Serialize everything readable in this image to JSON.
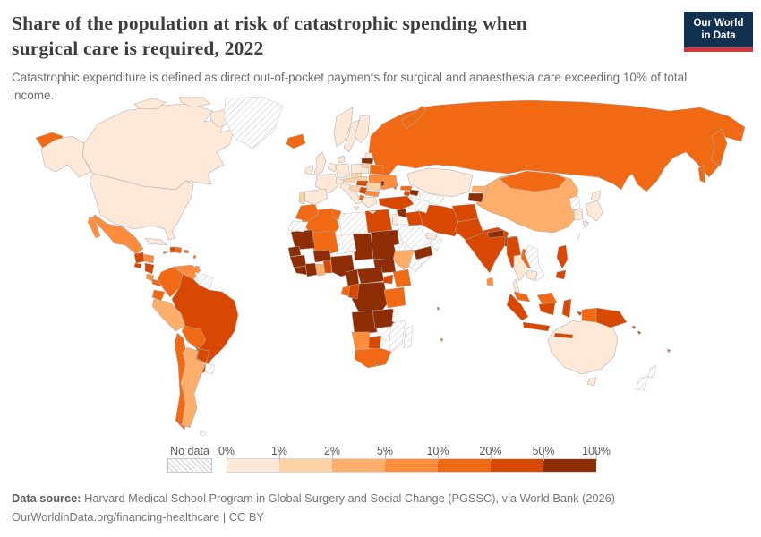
{
  "header": {
    "title_line1": "Share of the population at risk of catastrophic spending when",
    "title_line2": "surgical care is required, 2022",
    "subtitle": "Catastrophic expenditure is defined as direct out-of-pocket payments for surgical and anaesthesia care exceeding 10% of total income.",
    "logo": {
      "line1": "Our World",
      "line2": "in Data",
      "bg_color": "#12304f",
      "bar_color": "#d0393f"
    }
  },
  "legend": {
    "no_data_label": "No data",
    "tick_labels": [
      "0%",
      "1%",
      "2%",
      "5%",
      "10%",
      "20%",
      "50%",
      "100%"
    ]
  },
  "footer": {
    "source_label": "Data source:",
    "source_text": " Harvard Medical School Program in Global Surgery and Social Change (PGSSC), via World Bank (2026)",
    "citation": "OurWorldinData.org/financing-healthcare | CC BY"
  },
  "chart_data": {
    "type": "choropleth",
    "title": "Share of the population at risk of catastrophic spending when surgical care is required",
    "year": 2022,
    "unit_ranges": [
      "0-1%",
      "1-2%",
      "2-5%",
      "5-10%",
      "10-20%",
      "20-50%",
      "50-100%"
    ],
    "palette": [
      "#fee8d8",
      "#fdd2a5",
      "#fdae6b",
      "#fd8d3c",
      "#f16913",
      "#d94801",
      "#8f2d04"
    ],
    "no_data_value": "no-data",
    "countries": {
      "canada": "0-1%",
      "usa": "0-1%",
      "greenland": "no-data",
      "mexico": "5-10%",
      "guatemala": "20-50%",
      "el-salvador": "20-50%",
      "honduras": "5-10%",
      "nicaragua": "20-50%",
      "costa-rica": "5-10%",
      "panama": "10-20%",
      "cuba": "0-1%",
      "jamaica": "5-10%",
      "haiti": "20-50%",
      "dominican-republic": "10-20%",
      "puerto-rico": "10-20%",
      "caribbean-islands": "10-20%",
      "trinidad-and-tobago": "5-10%",
      "colombia": "10-20%",
      "venezuela": "5-10%",
      "guyana-suriname": "no-data",
      "ecuador": "10-20%",
      "peru": "2-5%",
      "brazil": "20-50%",
      "bolivia": "10-20%",
      "paraguay": "20-50%",
      "chile": "10-20%",
      "argentina": "2-5%",
      "uruguay": "no-data",
      "falkland-islands": "no-data",
      "iceland": "10-20%",
      "ireland": "0-1%",
      "united-kingdom": "0-1%",
      "norway": "0-1%",
      "sweden": "0-1%",
      "finland": "0-1%",
      "denmark": "0-1%",
      "germany": "0-1%",
      "benelux": "0-1%",
      "france": "0-1%",
      "spain": "0-1%",
      "portugal": "1-2%",
      "italy": "0-1%",
      "switzerland": "0-1%",
      "austria": "1-2%",
      "czechia": "1-2%",
      "poland": "0-1%",
      "slovakia": "1-2%",
      "estonia": "0-1%",
      "latvia": "50-100%",
      "lithuania": "1-2%",
      "belarus": "10-20%",
      "ukraine": "5-10%",
      "moldova": "50-100%",
      "hungary": "20-50%",
      "romania": "1-2%",
      "serbia": "20-50%",
      "croatia-bosnia": "1-2%",
      "bulgaria": "5-10%",
      "albania": "10-20%",
      "greece": "0-1%",
      "russia": "10-20%",
      "kazakhstan": "0-1%",
      "uzbekistan": "no-data",
      "turkmenistan": "no-data",
      "kyrgyzstan": "2-5%",
      "tajikistan": "50-100%",
      "georgia": "10-20%",
      "azerbaijan": "50-100%",
      "armenia": "20-50%",
      "turkey": "20-50%",
      "syria": "50-100%",
      "israel-jordan": "0-1%",
      "iraq": "20-50%",
      "iran": "20-50%",
      "saudi-arabia": "no-data",
      "yemen": "50-100%",
      "oman": "no-data",
      "uae-qatar": "0-1%",
      "morocco": "10-20%",
      "western-sahara": "no-data",
      "algeria": "10-20%",
      "tunisia": "10-20%",
      "libya": "no-data",
      "egypt": "20-50%",
      "mauritania": "50-100%",
      "mali": "10-20%",
      "niger": "no-data",
      "chad": "50-100%",
      "sudan": "50-100%",
      "eritrea": "no-data",
      "ethiopia": "2-5%",
      "somalia": "no-data",
      "senegal": "50-100%",
      "guinea": "50-100%",
      "sierra-leone-liberia": "50-100%",
      "cote-divoire": "50-100%",
      "ghana": "2-5%",
      "burkina-faso": "50-100%",
      "togo-benin": "20-50%",
      "nigeria": "50-100%",
      "cameroon": "50-100%",
      "central-african-republic": "50-100%",
      "south-sudan": "50-100%",
      "uganda": "20-50%",
      "kenya": "10-20%",
      "gabon": "10-20%",
      "congo": "20-50%",
      "dr-congo": "50-100%",
      "tanzania": "10-20%",
      "angola": "50-100%",
      "zambia": "50-100%",
      "malawi": "no-data",
      "mozambique": "no-data",
      "zimbabwe": "no-data",
      "botswana": "20-50%",
      "namibia": "5-10%",
      "south-africa": "10-20%",
      "lesotho": "20-50%",
      "madagascar": "no-data",
      "indian-ocean-islands": "10-20%",
      "afghanistan": "20-50%",
      "pakistan": "20-50%",
      "india": "20-50%",
      "nepal": "50-100%",
      "bangladesh": "50-100%",
      "sri-lanka": "5-10%",
      "china": "2-5%",
      "mongolia": "10-20%",
      "north-korea": "no-data",
      "south-korea": "0-1%",
      "japan": "0-1%",
      "taiwan": "no-data",
      "myanmar": "20-50%",
      "thailand": "0-1%",
      "laos": "10-20%",
      "vietnam": "no-data",
      "cambodia": "0-1%",
      "malaysia": "10-20%",
      "indonesia": "20-50%",
      "indonesia-papua": "10-20%",
      "philippines": "20-50%",
      "papua-new-guinea": "20-50%",
      "solomon-islands": "20-50%",
      "fiji": "10-20%",
      "australia": "0-1%",
      "new-zealand": "no-data"
    }
  }
}
